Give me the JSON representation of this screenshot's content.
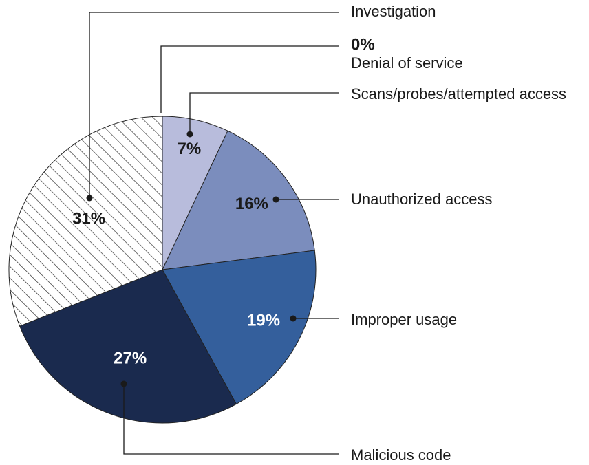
{
  "chart_data": {
    "type": "pie",
    "categories": [
      "Denial of service",
      "Scans/probes/attempted access",
      "Unauthorized access",
      "Improper usage",
      "Malicious code",
      "Investigation"
    ],
    "values": [
      0,
      7,
      16,
      19,
      27,
      31
    ],
    "value_labels": [
      "0%",
      "7%",
      "16%",
      "19%",
      "27%",
      "31%"
    ],
    "colors": [
      null,
      "#b8bcdc",
      "#7b8dbd",
      "#345f9c",
      "#1a2a4e",
      "hatch"
    ]
  }
}
